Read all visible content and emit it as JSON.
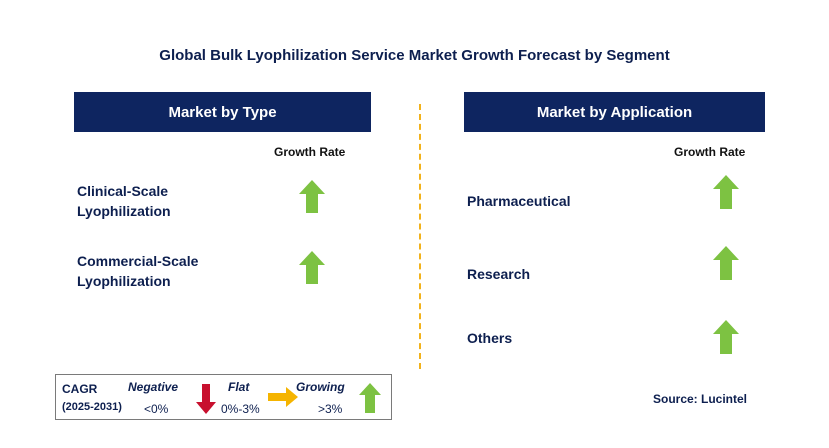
{
  "title": "Global Bulk Lyophilization Service Market Growth Forecast by Segment",
  "left_panel": {
    "header": "Market by Type",
    "column_header": "Growth Rate",
    "segments": [
      {
        "line1": "Clinical-Scale",
        "line2": "Lyophilization",
        "trend": "growing"
      },
      {
        "line1": "Commercial-Scale",
        "line2": "Lyophilization",
        "trend": "growing"
      }
    ]
  },
  "right_panel": {
    "header": "Market by Application",
    "column_header": "Growth Rate",
    "segments": [
      {
        "label": "Pharmaceutical",
        "trend": "growing"
      },
      {
        "label": "Research",
        "trend": "growing"
      },
      {
        "label": "Others",
        "trend": "growing"
      }
    ]
  },
  "legend": {
    "cagr_label": "CAGR",
    "period": "(2025-2031)",
    "negative": {
      "label": "Negative",
      "range": "<0%",
      "icon": "red-down-arrow-icon"
    },
    "flat": {
      "label": "Flat",
      "range": "0%-3%",
      "icon": "orange-right-arrow-icon"
    },
    "growing": {
      "label": "Growing",
      "range": ">3%",
      "icon": "green-up-arrow-icon"
    }
  },
  "source": "Source: Lucintel",
  "colors": {
    "header_bg": "#0e2560",
    "growing": "#7dc242",
    "negative": "#c8102e",
    "flat": "#f5b400",
    "divider": "#f2b21b"
  }
}
